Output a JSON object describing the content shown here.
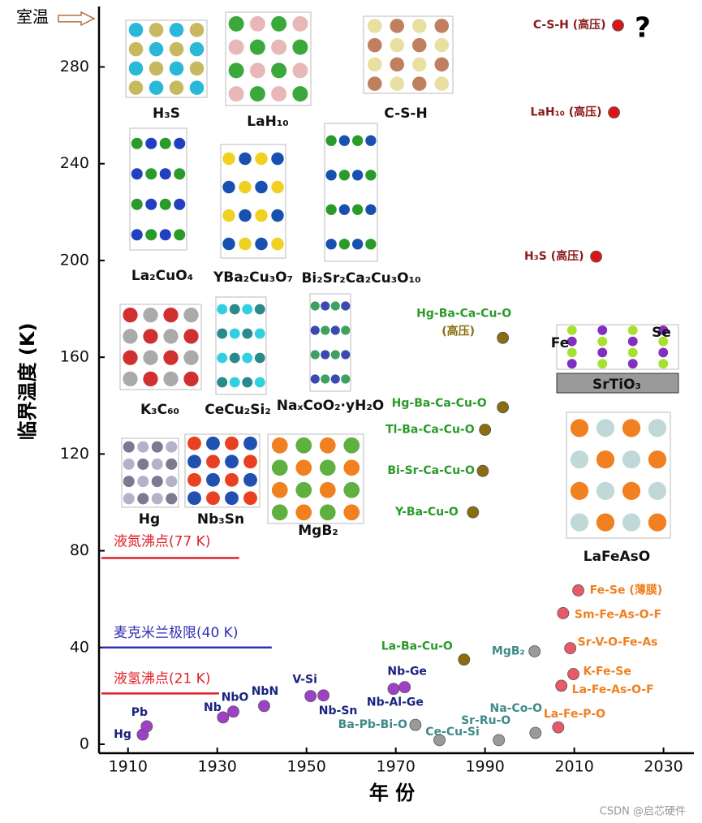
{
  "chart_data": {
    "type": "scatter",
    "y_label": "临界温度 (K)",
    "x_label": "年 份",
    "xlim": [
      1903.5,
      2036.8
    ],
    "ylim": [
      -3.7,
      305
    ],
    "xticks": [
      1910,
      1930,
      1950,
      1970,
      1990,
      2010,
      2030
    ],
    "yticks": [
      0,
      40,
      80,
      120,
      160,
      200,
      240,
      280
    ],
    "room_temperature": {
      "label": "室温",
      "value": 300
    },
    "question_mark": "?",
    "reference_lines": [
      {
        "label": "液氮沸点(77 K)",
        "value": 77,
        "x_end": 1934.9,
        "color": "#e0202a"
      },
      {
        "label": "麦克米兰极限(40 K)",
        "value": 40,
        "x_end": 1942.2,
        "color": "#3030b0"
      },
      {
        "label": "液氢沸点(21 K)",
        "value": 21,
        "x_end": 1930.4,
        "color": "#e0202a"
      }
    ],
    "series": [
      {
        "color": "#a040c8",
        "label_color": "#1a237e",
        "x": [
          1913.3,
          1914.2,
          1931.3,
          1933.6,
          1940.5,
          1950.9,
          1953.8,
          1972,
          1969.5
        ],
        "values": [
          4,
          7.4,
          11.1,
          13.5,
          15.8,
          19.9,
          20.2,
          23.6,
          22.9
        ],
        "labels": [
          "Hg",
          "Pb",
          "Nb",
          "NbO",
          "NbN",
          "V-Si",
          "Nb-Sn",
          "Nb-Ge",
          "Nb-Al-Ge"
        ]
      },
      {
        "color": "#8a6d10",
        "label_color": "#2a9a2a",
        "x": [
          1985.3,
          1987.3,
          1989.5,
          1990,
          1994,
          1994
        ],
        "values": [
          35,
          95.9,
          113,
          130,
          139.3,
          168
        ],
        "labels": [
          "La-Ba-Cu-O",
          "Y-Ba-Cu-O",
          "Bi-Sr-Ca-Cu-O",
          "Tl-Ba-Ca-Cu-O",
          "Hg-Ba-Ca-Cu-O",
          [
            "Hg-Ba-Ca-Cu-O",
            "(高压)"
          ]
        ]
      },
      {
        "color": "#9a9a9a",
        "label_color": "#3f8a8a",
        "x": [
          1974.4,
          1979.8,
          1993.1,
          2001.3,
          2001.1
        ],
        "values": [
          8,
          1.7,
          1.7,
          4.7,
          38.4
        ],
        "labels": [
          "Ba-Pb-Bi-O",
          "Ce-Cu-Si",
          "Sr-Ru-O",
          "Na-Co-O",
          "MgB₂"
        ]
      },
      {
        "color": "#e85a68",
        "label_color": "#f08020",
        "x": [
          2006.4,
          2007.1,
          2009.8,
          2009.1,
          2007.5,
          2010.9
        ],
        "values": [
          7,
          24.2,
          29,
          39.7,
          54.2,
          63.6
        ],
        "labels": [
          "La-Fe-P-O",
          "La-Fe-As-O-F",
          "K-Fe-Se",
          "Sr-V-O-Fe-As",
          "Sm-Fe-As-O-F",
          "Fe-Se (薄膜)"
        ]
      },
      {
        "color": "#d81818",
        "label_color": "#8b1a1a",
        "x": [
          2014.9,
          2018.9,
          2019.8
        ],
        "values": [
          201.6,
          261.2,
          297.2
        ],
        "labels": [
          "H₃S (高压)",
          "LaH₁₀ (高压)",
          "C-S-H (高压)"
        ]
      }
    ],
    "structures": [
      "H₃S",
      "LaH₁₀",
      "C-S-H",
      "La₂CuO₄",
      "YBa₂Cu₃O₇",
      "Bi₂Sr₂Ca₂Cu₃O₁₀",
      "K₃C₆₀",
      "CeCu₂Si₂",
      "NaₓCoO₂·yH₂O",
      "Hg",
      "Nb₃Sn",
      "MgB₂",
      "LaFeAsO",
      "SrTiO₃",
      "Fe",
      "Se"
    ],
    "watermark": "CSDN @启芯硬件"
  }
}
